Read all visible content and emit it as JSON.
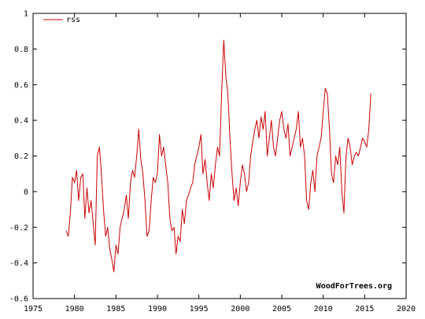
{
  "chart_data": {
    "type": "line",
    "title": "",
    "xlabel": "",
    "ylabel": "",
    "xlim": [
      1975,
      2020
    ],
    "ylim": [
      -0.6,
      1
    ],
    "xticks": [
      1975,
      1980,
      1985,
      1990,
      1995,
      2000,
      2005,
      2010,
      2015,
      2020
    ],
    "yticks": [
      -0.6,
      -0.4,
      -0.2,
      0,
      0.2,
      0.4,
      0.6,
      0.8,
      1
    ],
    "grid": false,
    "legend": "top-left",
    "watermark": "WoodForTrees.org",
    "series": [
      {
        "name": "rss",
        "color": "#cc0000",
        "x": [
          1979.0,
          1979.25,
          1979.5,
          1979.75,
          1980.0,
          1980.25,
          1980.5,
          1980.75,
          1981.0,
          1981.25,
          1981.5,
          1981.75,
          1982.0,
          1982.25,
          1982.5,
          1982.75,
          1983.0,
          1983.25,
          1983.5,
          1983.75,
          1984.0,
          1984.25,
          1984.5,
          1984.75,
          1985.0,
          1985.25,
          1985.5,
          1985.75,
          1986.0,
          1986.25,
          1986.5,
          1986.75,
          1987.0,
          1987.25,
          1987.5,
          1987.75,
          1988.0,
          1988.25,
          1988.5,
          1988.75,
          1989.0,
          1989.25,
          1989.5,
          1989.75,
          1990.0,
          1990.25,
          1990.5,
          1990.75,
          1991.0,
          1991.25,
          1991.5,
          1991.75,
          1992.0,
          1992.25,
          1992.5,
          1992.75,
          1993.0,
          1993.25,
          1993.5,
          1993.75,
          1994.0,
          1994.25,
          1994.5,
          1994.75,
          1995.0,
          1995.25,
          1995.5,
          1995.75,
          1996.0,
          1996.25,
          1996.5,
          1996.75,
          1997.0,
          1997.25,
          1997.5,
          1997.75,
          1998.0,
          1998.25,
          1998.5,
          1998.75,
          1999.0,
          1999.25,
          1999.5,
          1999.75,
          2000.0,
          2000.25,
          2000.5,
          2000.75,
          2001.0,
          2001.25,
          2001.5,
          2001.75,
          2002.0,
          2002.25,
          2002.5,
          2002.75,
          2003.0,
          2003.25,
          2003.5,
          2003.75,
          2004.0,
          2004.25,
          2004.5,
          2004.75,
          2005.0,
          2005.25,
          2005.5,
          2005.75,
          2006.0,
          2006.25,
          2006.5,
          2006.75,
          2007.0,
          2007.25,
          2007.5,
          2007.75,
          2008.0,
          2008.25,
          2008.5,
          2008.75,
          2009.0,
          2009.25,
          2009.5,
          2009.75,
          2010.0,
          2010.25,
          2010.5,
          2010.75,
          2011.0,
          2011.25,
          2011.5,
          2011.75,
          2012.0,
          2012.25,
          2012.5,
          2012.75,
          2013.0,
          2013.25,
          2013.5,
          2013.75,
          2014.0,
          2014.25,
          2014.5,
          2014.75,
          2015.0,
          2015.25,
          2015.5,
          2015.75
        ],
        "y": [
          -0.22,
          -0.25,
          -0.12,
          0.08,
          0.05,
          0.12,
          -0.05,
          0.08,
          0.1,
          -0.15,
          0.02,
          -0.12,
          -0.05,
          -0.18,
          -0.3,
          0.2,
          0.25,
          0.1,
          -0.1,
          -0.25,
          -0.2,
          -0.32,
          -0.38,
          -0.45,
          -0.3,
          -0.35,
          -0.2,
          -0.15,
          -0.1,
          -0.02,
          -0.15,
          0.05,
          0.12,
          0.08,
          0.2,
          0.35,
          0.18,
          0.1,
          -0.05,
          -0.25,
          -0.22,
          -0.05,
          0.08,
          0.05,
          0.1,
          0.32,
          0.2,
          0.25,
          0.15,
          0.05,
          -0.15,
          -0.22,
          -0.2,
          -0.35,
          -0.25,
          -0.28,
          -0.1,
          -0.18,
          -0.05,
          -0.02,
          0.02,
          0.05,
          0.15,
          0.2,
          0.25,
          0.32,
          0.1,
          0.18,
          0.05,
          -0.05,
          0.1,
          0.02,
          0.15,
          0.25,
          0.2,
          0.55,
          0.85,
          0.65,
          0.55,
          0.3,
          0.1,
          -0.05,
          0.02,
          -0.08,
          0.05,
          0.15,
          0.1,
          0.0,
          0.05,
          0.2,
          0.28,
          0.35,
          0.4,
          0.3,
          0.42,
          0.35,
          0.45,
          0.2,
          0.3,
          0.4,
          0.25,
          0.2,
          0.3,
          0.4,
          0.45,
          0.35,
          0.3,
          0.38,
          0.2,
          0.25,
          0.3,
          0.35,
          0.45,
          0.25,
          0.3,
          0.2,
          -0.05,
          -0.1,
          0.05,
          0.12,
          0.0,
          0.2,
          0.25,
          0.3,
          0.45,
          0.58,
          0.55,
          0.35,
          0.1,
          0.05,
          0.2,
          0.15,
          0.25,
          0.0,
          -0.12,
          0.2,
          0.3,
          0.25,
          0.15,
          0.2,
          0.22,
          0.2,
          0.25,
          0.3,
          0.28,
          0.25,
          0.35,
          0.55
        ]
      }
    ]
  }
}
